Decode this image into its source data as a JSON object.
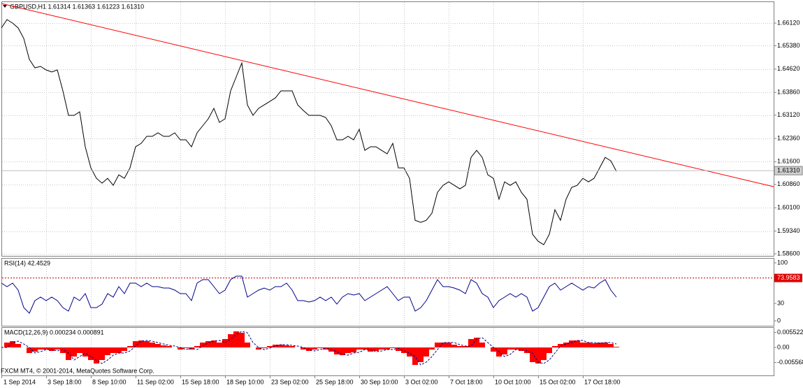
{
  "chart_data": [
    {
      "type": "line",
      "title": "GBPUSD,H1  1.61314 1.61363 1.61223 1.61310",
      "categories": [
        "1 Sep 2014",
        null,
        null,
        null,
        null,
        null,
        null,
        null,
        "3 Sep 18:00",
        null,
        null,
        null,
        null,
        null,
        null,
        null,
        "8 Sep 10:00",
        null,
        null,
        null,
        null,
        null,
        null,
        null,
        "11 Sep 02:00",
        null,
        null,
        null,
        null,
        null,
        null,
        null,
        "15 Sep 18:00",
        null,
        null,
        null,
        null,
        null,
        null,
        null,
        "18 Sep 10:00",
        null,
        null,
        null,
        null,
        null,
        null,
        null,
        "23 Sep 02:00",
        null,
        null,
        null,
        null,
        null,
        null,
        null,
        "25 Sep 18:00",
        null,
        null,
        null,
        null,
        null,
        null,
        null,
        "30 Sep 10:00",
        null,
        null,
        null,
        null,
        null,
        null,
        null,
        "3 Oct 02:00",
        null,
        null,
        null,
        null,
        null,
        null,
        null,
        "7 Oct 18:00",
        null,
        null,
        null,
        null,
        null,
        null,
        null,
        "10 Oct 10:00",
        null,
        null,
        null,
        null,
        null,
        null,
        null,
        "15 Oct 02:00",
        null,
        null,
        null,
        null,
        null,
        null,
        null,
        "17 Oct 18:00",
        null,
        null,
        null,
        null,
        null,
        null
      ],
      "series": [
        {
          "color": "#000000",
          "values": [
            1.6596,
            1.66234,
            1.6612,
            1.6596,
            1.65619,
            1.64935,
            1.64661,
            1.64707,
            1.64593,
            1.64525,
            1.64593,
            1.63909,
            1.63112,
            1.63112,
            1.63226,
            1.62086,
            1.61402,
            1.6106,
            1.60901,
            1.6106,
            1.60832,
            1.61174,
            1.6106,
            1.61402,
            1.62086,
            1.622,
            1.62428,
            1.62428,
            1.62542,
            1.62428,
            1.62428,
            1.62542,
            1.62314,
            1.62314,
            1.62086,
            1.62542,
            1.6277,
            1.62998,
            1.6334,
            1.62884,
            1.62998,
            1.63909,
            1.64365,
            1.6482,
            1.63453,
            1.63112,
            1.6334,
            1.63453,
            1.63567,
            1.63681,
            1.63909,
            1.63909,
            1.63909,
            1.63453,
            1.63271,
            1.63112,
            1.63112,
            1.63112,
            1.63043,
            1.6277,
            1.62314,
            1.62314,
            1.62428,
            1.62314,
            1.62656,
            1.61971,
            1.62086,
            1.62086,
            1.61971,
            1.61857,
            1.622,
            1.61402,
            1.61402,
            1.6106,
            1.59693,
            1.59624,
            1.59693,
            1.59921,
            1.60604,
            1.60832,
            1.60946,
            1.60832,
            1.60718,
            1.60832,
            1.61744,
            1.61971,
            1.61744,
            1.61174,
            1.6106,
            1.60377,
            1.60946,
            1.60832,
            1.60946,
            1.60604,
            1.60377,
            1.59237,
            1.59009,
            1.58895,
            1.59237,
            1.60035,
            1.59693,
            1.60377,
            1.60765,
            1.60832,
            1.6106,
            1.60946,
            1.6106,
            1.61402,
            1.61744,
            1.6163,
            1.61288
          ]
        }
      ],
      "ylim": [
        1.58532,
        1.66827
      ],
      "yticks": [
        {
          "value": 1.6612,
          "label": "1.66120"
        },
        {
          "value": 1.6538,
          "label": "1.65380"
        },
        {
          "value": 1.6462,
          "label": "1.64620"
        },
        {
          "value": 1.6386,
          "label": "1.63860"
        },
        {
          "value": 1.6312,
          "label": "1.63120"
        },
        {
          "value": 1.6236,
          "label": "1.62360"
        },
        {
          "value": 1.616,
          "label": "1.61600"
        },
        {
          "value": 1.6086,
          "label": "1.60860"
        },
        {
          "value": 1.601,
          "label": "1.60100"
        },
        {
          "value": 1.5934,
          "label": "1.59340"
        },
        {
          "value": 1.586,
          "label": "1.58600"
        }
      ],
      "grid": true,
      "trendline": {
        "color": "#ff0000",
        "values": [
          1.66758,
          1.60787
        ]
      },
      "last_price": {
        "value": 1.6131,
        "label": "1.61310"
      }
    },
    {
      "type": "line",
      "title": "RSI(14) 42.4529",
      "series": [
        {
          "color": "#00008b",
          "values": [
            65.1,
            59.0,
            65.1,
            53.0,
            22.9,
            13.3,
            34.9,
            41.0,
            34.9,
            41.0,
            34.9,
            22.9,
            16.9,
            41.0,
            34.9,
            47.0,
            22.9,
            22.9,
            28.9,
            47.0,
            41.0,
            59.0,
            47.0,
            65.1,
            65.1,
            59.0,
            65.1,
            59.0,
            59.0,
            56.6,
            56.6,
            53.0,
            47.0,
            47.0,
            34.9,
            65.1,
            71.1,
            71.1,
            59.0,
            47.0,
            53.0,
            71.1,
            77.1,
            77.1,
            41.0,
            47.0,
            53.0,
            56.6,
            53.0,
            59.0,
            59.0,
            65.1,
            53.0,
            34.9,
            34.9,
            32.5,
            34.9,
            41.0,
            34.9,
            41.0,
            28.9,
            41.0,
            47.0,
            44.6,
            47.0,
            34.9,
            41.0,
            47.0,
            53.0,
            59.0,
            47.0,
            34.9,
            41.0,
            41.0,
            16.9,
            22.9,
            34.9,
            53.0,
            71.1,
            59.0,
            59.0,
            56.6,
            53.0,
            47.0,
            71.1,
            65.1,
            47.0,
            41.0,
            22.9,
            34.9,
            41.0,
            47.0,
            41.0,
            47.0,
            41.0,
            16.9,
            22.9,
            41.0,
            59.0,
            65.1,
            53.0,
            59.0,
            65.1,
            59.0,
            53.0,
            59.0,
            56.6,
            65.1,
            71.1,
            53.0,
            41.0
          ]
        }
      ],
      "ylim": [
        -8.4,
        108.4
      ],
      "yticks": [
        0,
        30,
        100
      ],
      "level": 73.9583
    },
    {
      "type": "bar",
      "title": "MACD(12,26,9) 0.000234 0.000891",
      "series": [
        {
          "color": "#ff0000",
          "values": [
            0,
            0.00181,
            0.00232,
            0.00129,
            0,
            -0.00206,
            -0.00155,
            -0.00077,
            -0.00077,
            -0.00129,
            -0.00077,
            -0.00206,
            -0.00464,
            -0.00335,
            -0.00206,
            -0.00335,
            -0.00464,
            -0.00593,
            -0.00464,
            -0.00284,
            -0.00206,
            -0.00206,
            -0.00129,
            0.00052,
            0.00232,
            0.00258,
            0.00232,
            0.00181,
            0.00129,
            0.00077,
            0.00052,
            0,
            -0.00077,
            -0.00026,
            -0.00077,
            0.00052,
            0.00181,
            0.00232,
            0.00258,
            0.00181,
            0.0031,
            0.0049,
            0.00593,
            0.00542,
            0.00181,
            0,
            -0.00077,
            -0.00026,
            0.00052,
            0.00103,
            0.00103,
            0.00077,
            0.00052,
            0,
            -0.00077,
            -0.00129,
            -0.00077,
            -0.00026,
            -0.00077,
            -0.00155,
            -0.00258,
            -0.00284,
            -0.00206,
            -0.00181,
            -0.00077,
            -0.00077,
            -0.00155,
            -0.00129,
            -0.00077,
            -0.00077,
            -0.00026,
            -0.00129,
            -0.00206,
            -0.00335,
            -0.00645,
            -0.00542,
            -0.00335,
            -0.00077,
            0.00181,
            0.00181,
            0.00181,
            0.00103,
            0.00052,
            0.00052,
            0.0031,
            0.00361,
            0.00181,
            0,
            -0.00155,
            -0.00335,
            -0.00258,
            -0.00077,
            -0.00077,
            -0.00129,
            -0.00206,
            -0.00542,
            -0.00593,
            -0.00464,
            -0.00206,
            0.00052,
            0.00129,
            0.00181,
            0.00258,
            0.00258,
            0.00181,
            0.00181,
            0.00155,
            0.00181,
            0.00181,
            0.00129,
            0.00023
          ]
        },
        {
          "type": "line",
          "color": "#000080",
          "dash": true,
          "values": [
            0,
            0,
            0.00181,
            0.00232,
            0.00129,
            0,
            -0.00206,
            -0.00155,
            -0.00077,
            -0.00077,
            -0.00129,
            -0.00077,
            -0.00206,
            -0.00464,
            -0.00335,
            -0.00206,
            -0.00335,
            -0.00464,
            -0.00593,
            -0.00464,
            -0.00284,
            -0.00206,
            -0.00206,
            -0.00129,
            0.00052,
            0.00232,
            0.00258,
            0.00232,
            0.00181,
            0.00129,
            0.00077,
            0.00052,
            0,
            -0.00077,
            -0.00026,
            -0.00077,
            0.00052,
            0.00181,
            0.00232,
            0.00258,
            0.00181,
            0.0031,
            0.0049,
            0.00593,
            0.00542,
            0.00181,
            0,
            -0.00077,
            -0.00026,
            0.00052,
            0.00103,
            0.00103,
            0.00077,
            0.00052,
            0,
            -0.00077,
            -0.00129,
            -0.00077,
            -0.00026,
            -0.00077,
            -0.00155,
            -0.00258,
            -0.00284,
            -0.00206,
            -0.00181,
            -0.00077,
            -0.00077,
            -0.00155,
            -0.00129,
            -0.00077,
            -0.00077,
            -0.00026,
            -0.00129,
            -0.00206,
            -0.00335,
            -0.00645,
            -0.00542,
            -0.00335,
            -0.00077,
            0.00181,
            0.00181,
            0.00181,
            0.00103,
            0.00052,
            0.00052,
            0.0031,
            0.00361,
            0.00181,
            0,
            -0.00155,
            -0.00335,
            -0.00258,
            -0.00077,
            -0.00077,
            -0.00129,
            -0.00206,
            -0.00542,
            -0.00593,
            -0.00464,
            -0.00206,
            0.00052,
            0.00129,
            0.00181,
            0.00258,
            0.00258,
            0.00181,
            0.00181,
            0.00155,
            0.00181,
            0.00181,
            0.00129
          ]
        }
      ],
      "ylim": [
        -0.01032,
        0.00748
      ],
      "yticks": [
        0.005522,
        {
          "value": 0,
          "label": "0.00"
        },
        -0.005568
      ]
    }
  ],
  "footer": "FXCM MT4, © 2001-2014, MetaQuotes Software Corp."
}
